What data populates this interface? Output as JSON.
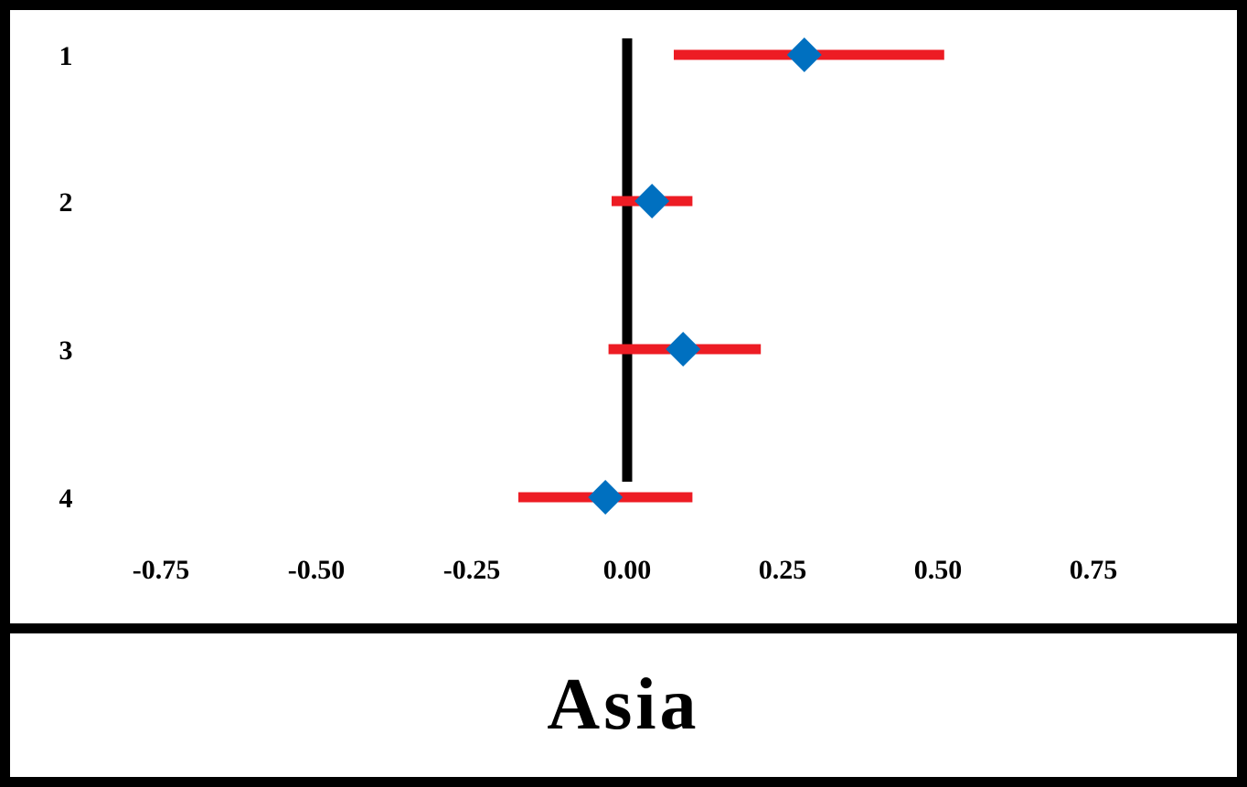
{
  "chart_data": {
    "type": "forest",
    "title": "Asia",
    "categories": [
      "1",
      "2",
      "3",
      "4"
    ],
    "estimates": [
      0.285,
      0.04,
      0.09,
      -0.035
    ],
    "ci_lower": [
      0.075,
      -0.025,
      -0.03,
      -0.175
    ],
    "ci_upper": [
      0.51,
      0.105,
      0.215,
      0.105
    ],
    "reference_line": 0.0,
    "xlim": [
      -0.82,
      0.82
    ],
    "xticks": [
      "-0.75",
      "-0.50",
      "-0.25",
      "0.00",
      "0.25",
      "0.50",
      "0.75"
    ],
    "xtick_values": [
      -0.75,
      -0.5,
      -0.25,
      0.0,
      0.25,
      0.5,
      0.75
    ],
    "grid": false,
    "colors": {
      "ci_bar": "#ed1c24",
      "marker": "#0070c0",
      "reference_line": "#000000"
    }
  }
}
